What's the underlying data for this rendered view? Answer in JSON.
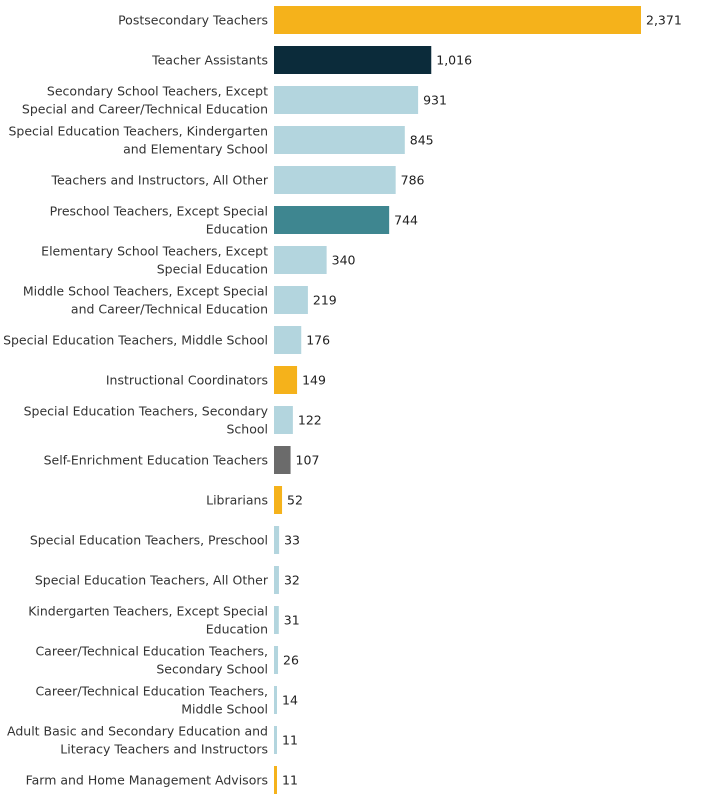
{
  "chart_data": {
    "type": "bar",
    "orientation": "horizontal",
    "categories": [
      [
        "Postsecondary Teachers"
      ],
      [
        "Teacher Assistants"
      ],
      [
        "Secondary School Teachers, Except",
        "Special and Career/Technical Education"
      ],
      [
        "Special Education Teachers, Kindergarten",
        "and Elementary School"
      ],
      [
        "Teachers and Instructors, All Other"
      ],
      [
        "Preschool Teachers, Except Special",
        "Education"
      ],
      [
        "Elementary School Teachers, Except",
        "Special Education"
      ],
      [
        "Middle School Teachers, Except Special",
        "and Career/Technical Education"
      ],
      [
        "Special Education Teachers, Middle School"
      ],
      [
        "Instructional Coordinators"
      ],
      [
        "Special Education Teachers, Secondary",
        "School"
      ],
      [
        "Self-Enrichment Education Teachers"
      ],
      [
        "Librarians"
      ],
      [
        "Special Education Teachers, Preschool"
      ],
      [
        "Special Education Teachers, All Other"
      ],
      [
        "Kindergarten Teachers, Except Special",
        "Education"
      ],
      [
        "Career/Technical Education Teachers,",
        "Secondary School"
      ],
      [
        "Career/Technical Education Teachers,",
        "Middle School"
      ],
      [
        "Adult Basic and Secondary Education and",
        "Literacy Teachers and Instructors"
      ],
      [
        "Farm and Home Management Advisors"
      ]
    ],
    "values": [
      2371,
      1016,
      931,
      845,
      786,
      744,
      340,
      219,
      176,
      149,
      122,
      107,
      52,
      33,
      32,
      31,
      26,
      14,
      11,
      11
    ],
    "value_labels": [
      "2,371",
      "1,016",
      "931",
      "845",
      "786",
      "744",
      "340",
      "219",
      "176",
      "149",
      "122",
      "107",
      "52",
      "33",
      "32",
      "31",
      "26",
      "14",
      "11",
      "11"
    ],
    "bar_colors": [
      "#F5B21B",
      "#0B2B3A",
      "#B3D5DE",
      "#B3D5DE",
      "#B3D5DE",
      "#3E8690",
      "#B3D5DE",
      "#B3D5DE",
      "#B3D5DE",
      "#F5B21B",
      "#B3D5DE",
      "#6B6B6B",
      "#F5B21B",
      "#B3D5DE",
      "#B3D5DE",
      "#B3D5DE",
      "#B3D5DE",
      "#B3D5DE",
      "#B3D5DE",
      "#F5B21B"
    ],
    "xlim": [
      0,
      2371
    ],
    "grid": false,
    "legend": "none",
    "title": "",
    "xlabel": "",
    "ylabel": ""
  }
}
